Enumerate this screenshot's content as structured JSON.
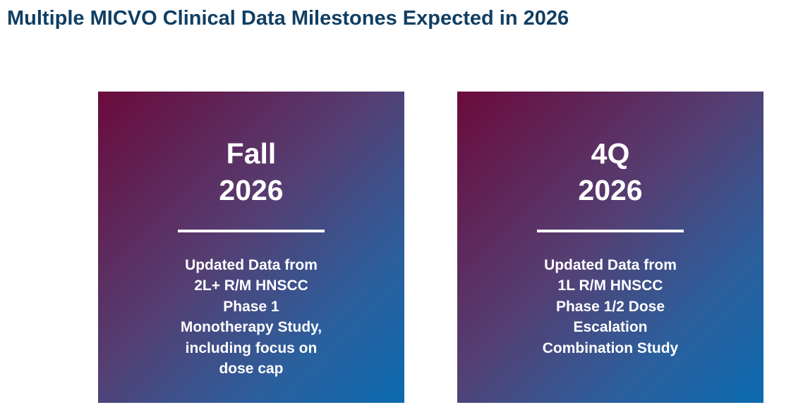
{
  "title": "Multiple MICVO Clinical Data Milestones Expected in 2026",
  "milestones": [
    {
      "heading_lines": [
        "Fall",
        "2026"
      ],
      "body_lines": [
        "Updated Data from",
        "2L+ R/M HNSCC",
        "Phase 1",
        "Monotherapy Study,",
        "including focus on",
        "dose cap"
      ]
    },
    {
      "heading_lines": [
        "4Q",
        "2026"
      ],
      "body_lines": [
        "Updated Data from",
        "1L R/M HNSCC",
        "Phase 1/2 Dose",
        "Escalation",
        "Combination Study"
      ]
    }
  ],
  "colors": {
    "title": "#103f63",
    "card_gradient_start": "#6b0a3c",
    "card_gradient_end": "#0b6bb0",
    "card_text": "#ffffff"
  }
}
